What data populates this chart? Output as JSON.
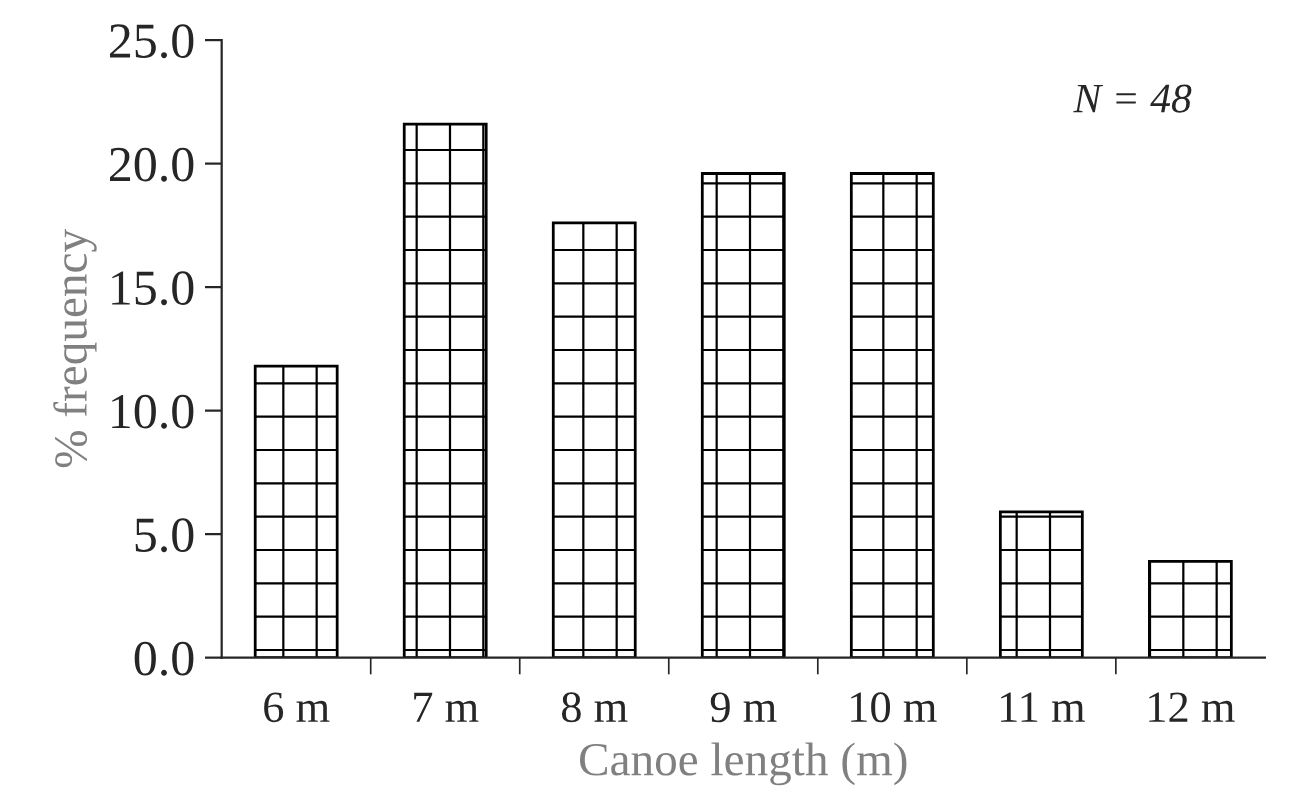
{
  "chart_data": {
    "type": "bar",
    "xlabel": "Canoe length (m)",
    "ylabel": "% frequency",
    "categories": [
      "6 m",
      "7 m",
      "8 m",
      "9 m",
      "10 m",
      "11 m",
      "12 m"
    ],
    "values": [
      11.8,
      21.6,
      17.6,
      19.6,
      19.6,
      5.9,
      3.9
    ],
    "color": "#000000",
    "ylim": [
      0,
      25
    ],
    "yticks": [
      {
        "value": 0,
        "label": "0.0"
      },
      {
        "value": 5,
        "label": "5.0"
      },
      {
        "value": 10,
        "label": "10.0"
      },
      {
        "value": 15,
        "label": "15.0"
      },
      {
        "value": 20,
        "label": "20.0"
      },
      {
        "value": 25,
        "label": "25.0"
      }
    ],
    "annotations": [
      "N = 48"
    ],
    "grid": false,
    "legend": false
  }
}
